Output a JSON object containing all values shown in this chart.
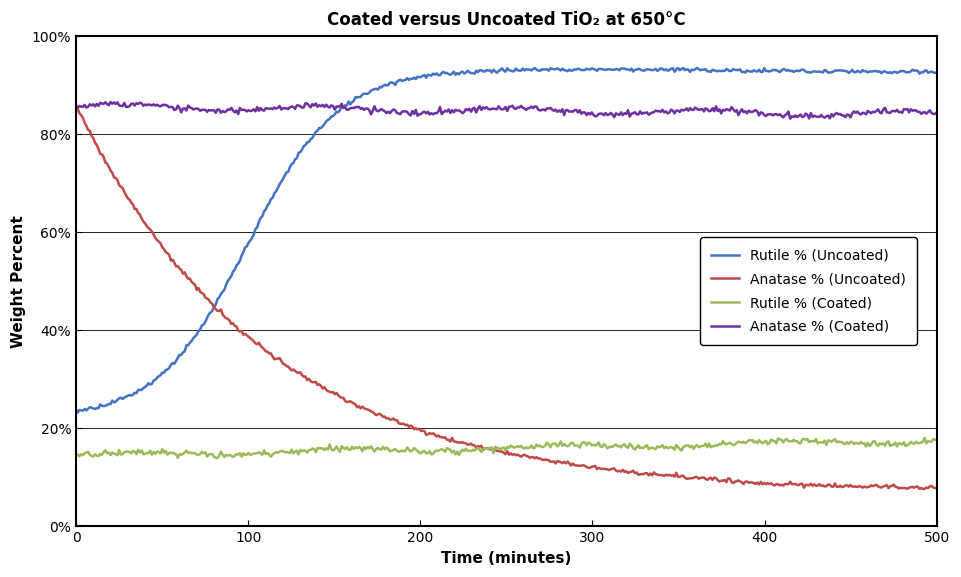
{
  "title": "Coated versus Uncoated TiO₂ at 650°C",
  "xlabel": "Time (minutes)",
  "ylabel": "Weight Percent",
  "xlim": [
    0,
    500
  ],
  "ylim": [
    0,
    1.0
  ],
  "yticks": [
    0,
    0.2,
    0.4,
    0.6,
    0.8,
    1.0
  ],
  "xticks": [
    0,
    100,
    200,
    300,
    400,
    500
  ],
  "bg_color": "#ffffff",
  "line_colors": {
    "rutile_uncoated": "#4472C4",
    "anatase_uncoated": "#BE4B48",
    "rutile_coated": "#9BBB59",
    "anatase_coated": "#7030A0"
  },
  "legend_labels": {
    "rutile_uncoated": "Rutile % (Uncoated)",
    "anatase_uncoated": "Anatase % (Uncoated)",
    "rutile_coated": "Rutile % (Coated)",
    "anatase_coated": "Anatase % (Coated)"
  },
  "title_fontsize": 12,
  "axis_label_fontsize": 11,
  "tick_fontsize": 10,
  "legend_fontsize": 10,
  "line_width": 1.8
}
